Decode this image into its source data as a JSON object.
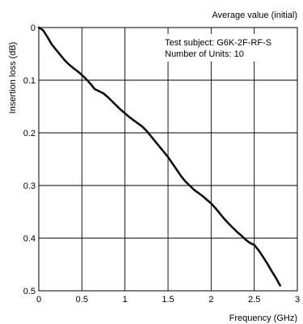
{
  "chart_data": {
    "type": "line",
    "title": "Average value (initial)",
    "annotations": [
      "Test subject: G6K-2F-RF-S",
      "Number of Units: 10"
    ],
    "xlabel": "Frequency (GHz)",
    "ylabel": "Insertion loss (dB)",
    "xlim": [
      0,
      3
    ],
    "ylim": [
      0,
      0.5
    ],
    "y_inverted": true,
    "grid": true,
    "x_ticks": [
      "0",
      "0.5",
      "1",
      "1.5",
      "2",
      "2.5",
      "3"
    ],
    "y_ticks": [
      "0",
      "0.1",
      "0.2",
      "0.3",
      "0.4",
      "0.5"
    ],
    "series": [
      {
        "x": [
          0,
          0.05,
          0.1,
          0.15,
          0.2,
          0.25,
          0.3,
          0.35,
          0.4,
          0.45,
          0.5,
          0.55,
          0.6,
          0.65,
          0.7,
          0.75,
          0.8,
          0.85,
          0.9,
          0.95,
          1.0,
          1.05,
          1.1,
          1.15,
          1.2,
          1.25,
          1.3,
          1.35,
          1.4,
          1.45,
          1.5,
          1.55,
          1.6,
          1.65,
          1.7,
          1.75,
          1.8,
          1.85,
          1.9,
          1.95,
          2.0,
          2.05,
          2.1,
          2.15,
          2.2,
          2.25,
          2.3,
          2.35,
          2.4,
          2.45,
          2.5,
          2.55,
          2.6,
          2.65,
          2.7,
          2.75,
          2.8
        ],
        "values": [
          0.0,
          0.005,
          0.018,
          0.032,
          0.042,
          0.052,
          0.062,
          0.07,
          0.077,
          0.083,
          0.09,
          0.098,
          0.107,
          0.117,
          0.121,
          0.125,
          0.132,
          0.14,
          0.148,
          0.156,
          0.163,
          0.17,
          0.176,
          0.182,
          0.188,
          0.196,
          0.206,
          0.216,
          0.226,
          0.236,
          0.246,
          0.258,
          0.27,
          0.282,
          0.292,
          0.3,
          0.308,
          0.314,
          0.32,
          0.327,
          0.334,
          0.343,
          0.353,
          0.363,
          0.372,
          0.38,
          0.388,
          0.395,
          0.403,
          0.409,
          0.413,
          0.423,
          0.435,
          0.448,
          0.462,
          0.475,
          0.49
        ]
      }
    ]
  }
}
